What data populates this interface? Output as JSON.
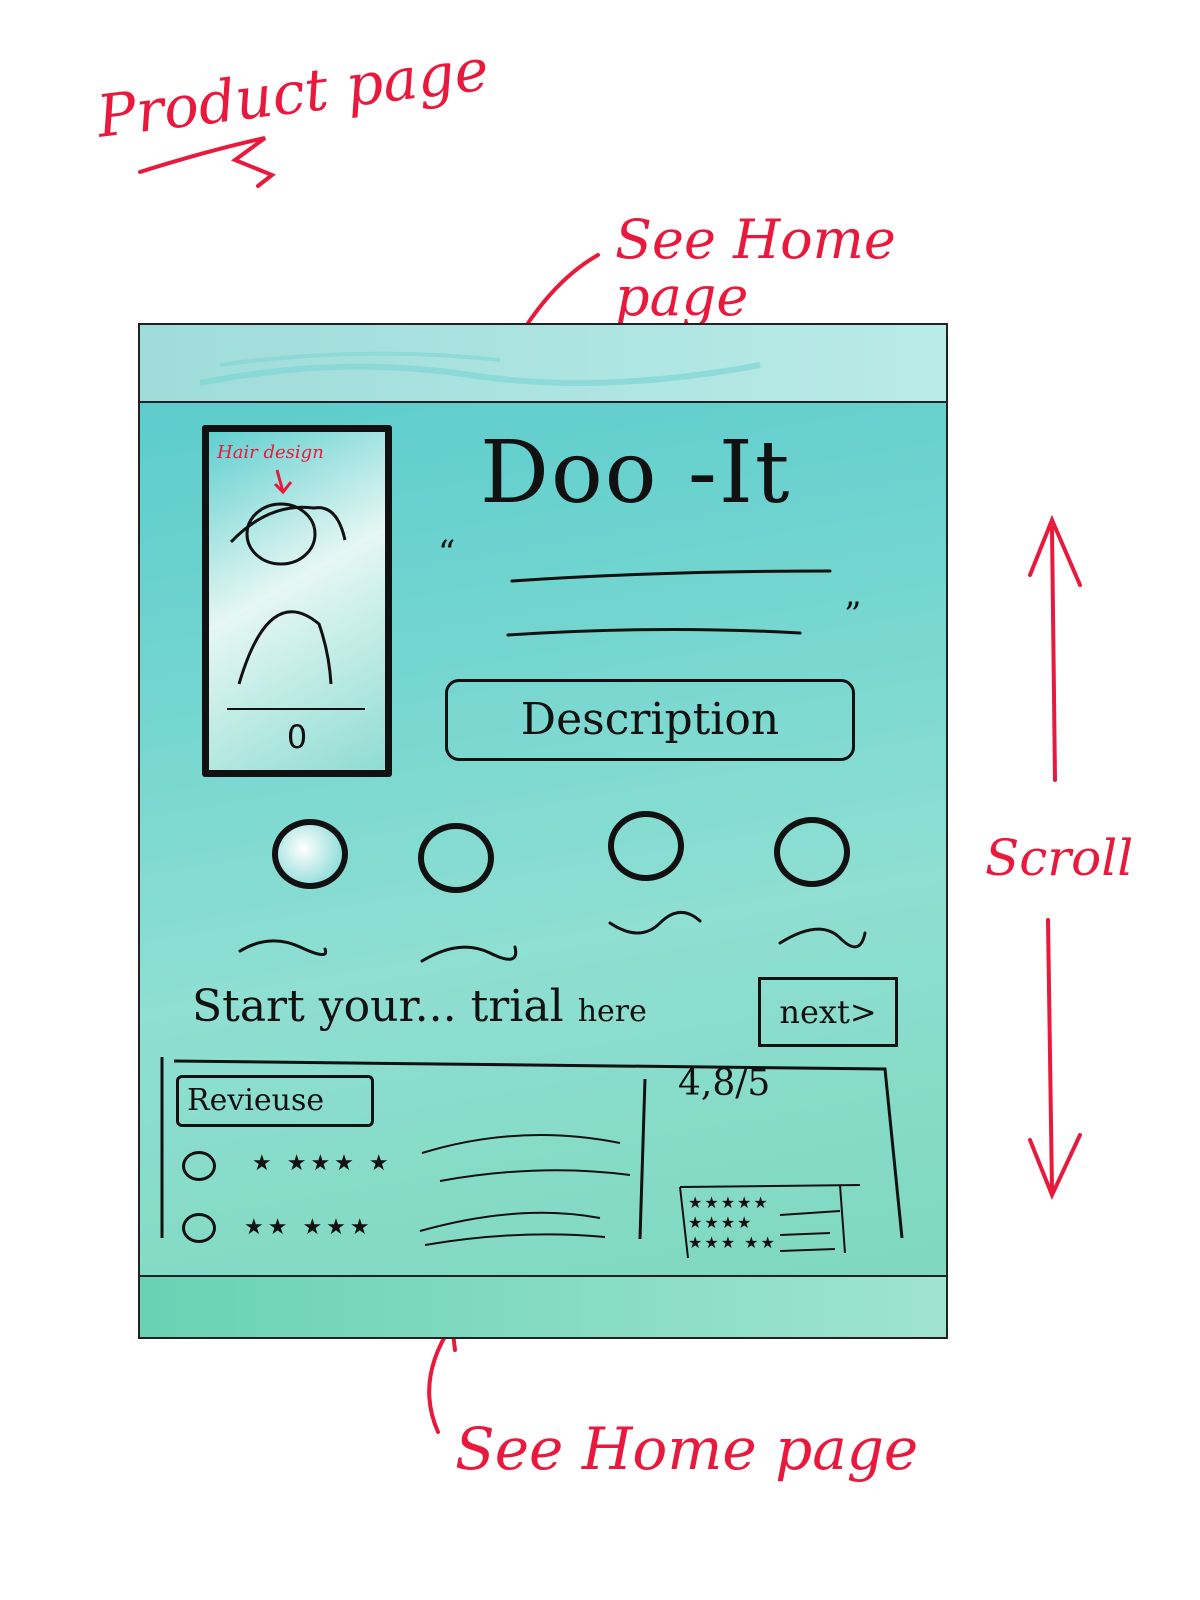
{
  "annotations": {
    "page_title": "Product page",
    "top_note": "See Home page",
    "scroll_note": "Scroll",
    "bottom_note": "See Home page"
  },
  "mockup": {
    "phone": {
      "label": "Hair design",
      "counter": "0"
    },
    "title": "Doo -It",
    "quote_open": "“",
    "quote_close": "”",
    "description_button": "Description",
    "trial": {
      "main": "Start your... trial",
      "small": "here"
    },
    "next_button": "next>",
    "reviews": {
      "label": "Revieuse",
      "rating": "4,8/5",
      "rows": [
        {
          "stars": "★ ★★★ ★"
        },
        {
          "stars": "★★ ★★★"
        }
      ]
    }
  },
  "colors": {
    "annotation": "#e8193c",
    "ink": "#111111",
    "teal": "#5dcccd",
    "header": "#a9e3e1"
  }
}
